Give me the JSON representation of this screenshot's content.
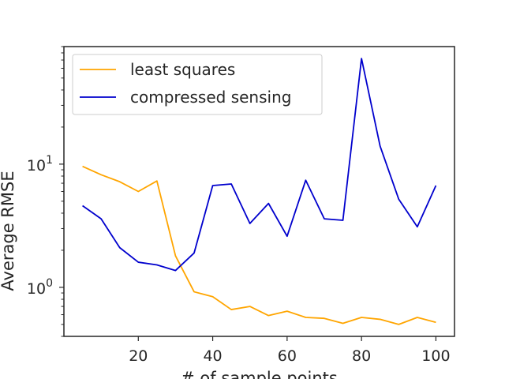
{
  "chart_data": {
    "type": "line",
    "title": "",
    "xlabel": "# of sample points",
    "ylabel": "Average RMSE",
    "yscale": "log",
    "xlim": [
      0,
      105
    ],
    "ylim": [
      0.4,
      90
    ],
    "xticks": [
      {
        "value": 20,
        "label": "20"
      },
      {
        "value": 40,
        "label": "40"
      },
      {
        "value": 60,
        "label": "60"
      },
      {
        "value": 80,
        "label": "80"
      },
      {
        "value": 100,
        "label": "100"
      }
    ],
    "yticks": [
      {
        "value": 1,
        "base": "10",
        "exp": "0"
      },
      {
        "value": 10,
        "base": "10",
        "exp": "1"
      }
    ],
    "grid": false,
    "legend_position": "top-left",
    "x": [
      5,
      10,
      15,
      20,
      25,
      30,
      35,
      40,
      45,
      50,
      55,
      60,
      65,
      70,
      75,
      80,
      85,
      90,
      95,
      100
    ],
    "series": [
      {
        "name": "least squares",
        "color": "#FFA500",
        "values": [
          9.6,
          8.2,
          7.2,
          6.0,
          7.3,
          1.8,
          0.92,
          0.84,
          0.66,
          0.7,
          0.59,
          0.64,
          0.57,
          0.56,
          0.51,
          0.57,
          0.55,
          0.5,
          0.57,
          0.52
        ]
      },
      {
        "name": "compressed sensing",
        "color": "#0000CD",
        "values": [
          4.6,
          3.6,
          2.1,
          1.6,
          1.52,
          1.37,
          1.9,
          6.7,
          6.9,
          3.3,
          4.8,
          2.6,
          7.4,
          3.6,
          3.5,
          72,
          14,
          5.2,
          3.1,
          6.7
        ]
      }
    ]
  }
}
